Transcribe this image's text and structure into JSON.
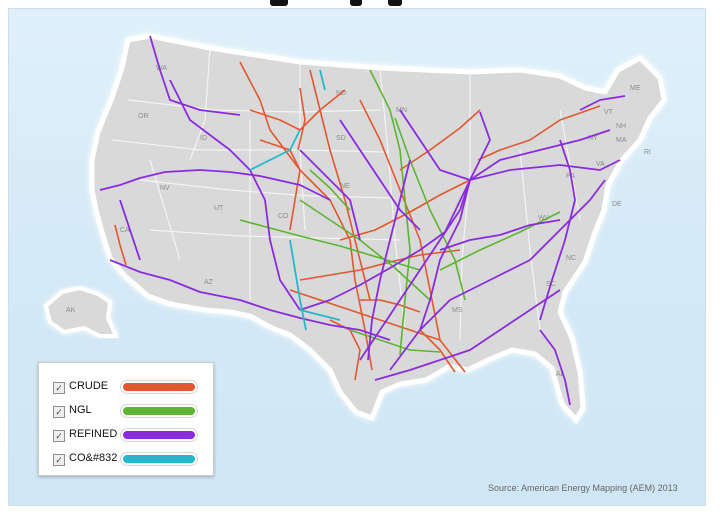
{
  "map": {
    "source": "Source: American Energy Mapping (AEM) 2013",
    "state_labels": [
      "WA",
      "OR",
      "ID",
      "ND",
      "SD",
      "NE",
      "NV",
      "UT",
      "CO",
      "AZ",
      "MS",
      "WV",
      "PA",
      "NC",
      "SC",
      "MN",
      "NY",
      "VT",
      "NH",
      "ME",
      "MA",
      "RI",
      "DE",
      "VA",
      "AK",
      "CA",
      "AL"
    ]
  },
  "legend": {
    "items": [
      {
        "label": "CRUDE",
        "color": "#e4572e",
        "checked": true
      },
      {
        "label": "NGL",
        "color": "#5bb532",
        "checked": true
      },
      {
        "label": "REFINED",
        "color": "#8a2be2",
        "checked": true
      },
      {
        "label": "CO&#832",
        "color": "#25b8cc",
        "checked": true
      }
    ]
  },
  "colors": {
    "crude": "#e4572e",
    "ngl": "#5bb532",
    "refined": "#8a2be2",
    "co2": "#25b8cc",
    "land": "#d9d9d9",
    "water": "#d6ebf7"
  }
}
